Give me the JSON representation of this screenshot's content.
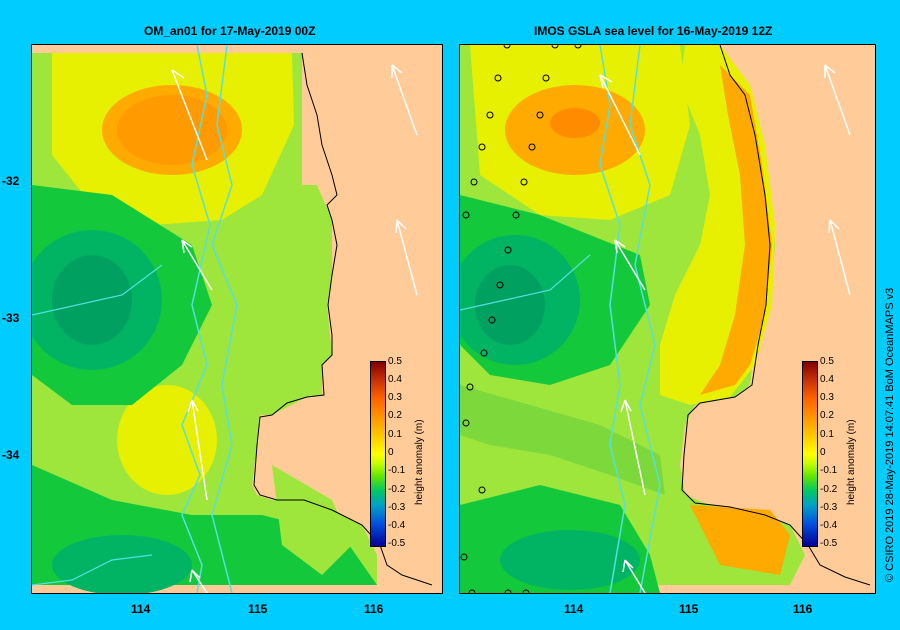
{
  "left_panel": {
    "title": "OM_an01  for 17-May-2019 00Z"
  },
  "right_panel": {
    "title": "IMOS GSLA sea level  for 16-May-2019 12Z"
  },
  "axes": {
    "x_ticks": [
      "114",
      "115",
      "116"
    ],
    "y_ticks": [
      "-32",
      "-33",
      "-34"
    ]
  },
  "colorbar": {
    "label": "height anomaly (m)",
    "ticks": [
      "0.5",
      "0.4",
      "0.3",
      "0.2",
      "0.1",
      "0",
      "-0.1",
      "-0.2",
      "-0.3",
      "-0.4",
      "-0.5"
    ],
    "colors": [
      "#800000",
      "#c8320a",
      "#ff6400",
      "#ff9600",
      "#ffc800",
      "#ffff00",
      "#c8ff00",
      "#64e600",
      "#00c864",
      "#00a0c8",
      "#0050dc",
      "#000096"
    ]
  },
  "credit": "© CSIRO 2019   28-May-2019 14:07:41 BoM OceanMAPS v3",
  "colors": {
    "background": "#00ccff",
    "land": "#ffcc99",
    "ocean_base": "#9ee63c",
    "contour_high": "#ffaa00",
    "contour_yellow": "#f0f000",
    "contour_low": "#00b464",
    "contour_lowmid": "#14c83c",
    "bathymetry": "#55e0e0",
    "vector": "#ffffff"
  }
}
